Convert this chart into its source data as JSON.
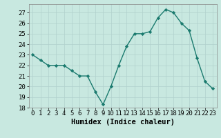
{
  "x": [
    0,
    1,
    2,
    3,
    4,
    5,
    6,
    7,
    8,
    9,
    10,
    11,
    12,
    13,
    14,
    15,
    16,
    17,
    18,
    19,
    20,
    21,
    22,
    23
  ],
  "y": [
    23,
    22.5,
    22,
    22,
    22,
    21.5,
    21,
    21,
    19.5,
    18.3,
    20,
    22,
    23.8,
    25,
    25,
    25.2,
    26.5,
    27.3,
    27,
    26,
    25.3,
    22.7,
    20.5,
    19.8
  ],
  "xlabel": "Humidex (Indice chaleur)",
  "line_color": "#1a7a6e",
  "marker_color": "#1a7a6e",
  "bg_color": "#c8e8e0",
  "grid_color": "#b0d0cc",
  "xlim": [
    -0.5,
    23.5
  ],
  "ylim": [
    18,
    27.8
  ],
  "yticks": [
    18,
    19,
    20,
    21,
    22,
    23,
    24,
    25,
    26,
    27
  ],
  "xticks": [
    0,
    1,
    2,
    3,
    4,
    5,
    6,
    7,
    8,
    9,
    10,
    11,
    12,
    13,
    14,
    15,
    16,
    17,
    18,
    19,
    20,
    21,
    22,
    23
  ],
  "xlabel_fontsize": 7.5,
  "tick_fontsize": 6.5
}
